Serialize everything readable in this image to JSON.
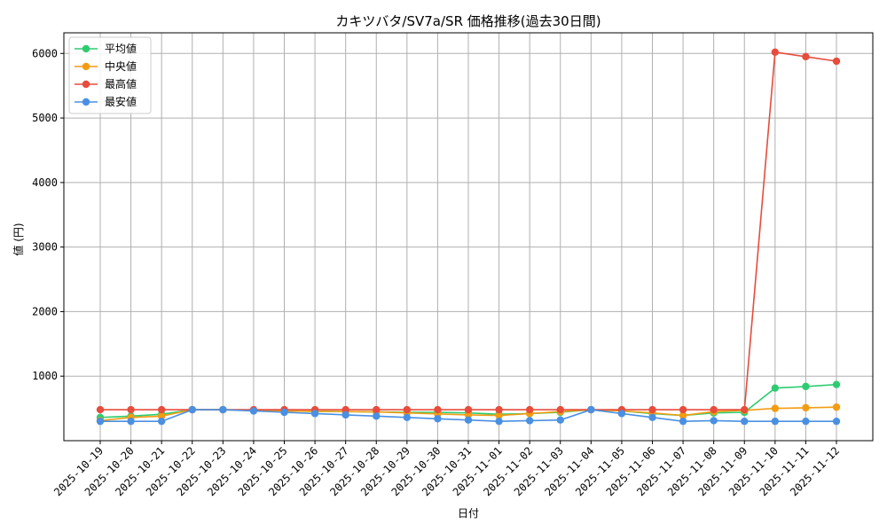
{
  "chart_data": {
    "type": "line",
    "title": "カキツバタ/SV7a/SR 価格推移(過去30日間)",
    "xlabel": "日付",
    "ylabel": "値 (円)",
    "categories": [
      "2025-10-19",
      "2025-10-20",
      "2025-10-21",
      "2025-10-22",
      "2025-10-23",
      "2025-10-24",
      "2025-10-25",
      "2025-10-26",
      "2025-10-27",
      "2025-10-28",
      "2025-10-29",
      "2025-10-30",
      "2025-10-31",
      "2025-11-01",
      "2025-11-02",
      "2025-11-03",
      "2025-11-04",
      "2025-11-05",
      "2025-11-06",
      "2025-11-07",
      "2025-11-08",
      "2025-11-09",
      "2025-11-10",
      "2025-11-11",
      "2025-11-12"
    ],
    "yticks": [
      1000,
      2000,
      3000,
      4000,
      5000,
      6000
    ],
    "ylim": [
      0,
      6320
    ],
    "grid": true,
    "legend_position": "top-left",
    "series": [
      {
        "name": "平均値",
        "color": "#2ecc71",
        "values": [
          360,
          380,
          410,
          480,
          480,
          470,
          460,
          455,
          450,
          445,
          440,
          440,
          430,
          410,
          420,
          440,
          480,
          460,
          420,
          390,
          430,
          440,
          815,
          840,
          870
        ]
      },
      {
        "name": "中央値",
        "color": "#f39c12",
        "values": [
          310,
          360,
          380,
          480,
          480,
          470,
          460,
          455,
          450,
          445,
          430,
          415,
          400,
          390,
          420,
          450,
          480,
          460,
          430,
          390,
          450,
          470,
          500,
          510,
          520
        ]
      },
      {
        "name": "最高値",
        "color": "#e74c3c",
        "values": [
          480,
          480,
          480,
          480,
          480,
          480,
          480,
          480,
          480,
          480,
          480,
          480,
          480,
          480,
          480,
          480,
          480,
          480,
          480,
          480,
          480,
          480,
          6020,
          5950,
          5880
        ]
      },
      {
        "name": "最安値",
        "color": "#4a90e2",
        "values": [
          300,
          300,
          300,
          480,
          480,
          460,
          440,
          420,
          400,
          380,
          360,
          340,
          320,
          300,
          310,
          320,
          480,
          420,
          360,
          300,
          310,
          300,
          300,
          300,
          300
        ]
      }
    ]
  }
}
